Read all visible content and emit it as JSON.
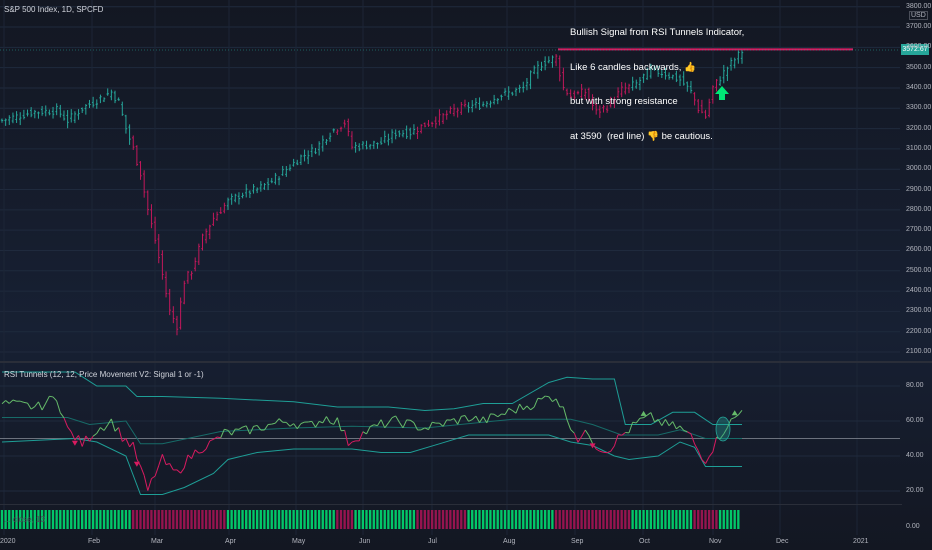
{
  "chart_title": "S&P 500 Index, 1D, SPCFD",
  "annotation_lines": [
    "Bullish Signal from RSI Tunnels Indicator,",
    "Like 6 candles backwards, 👍",
    "but with strong resistance",
    "at 3590  (red line) 👎 be cautious."
  ],
  "currency": "USD",
  "last_price": "3572.67",
  "indicator_title": "RSI Tunnels (12, 12, Price Movement V2: Signal 1 or -1)",
  "strip_title": "... close, 13",
  "colors": {
    "bull": "#26a69a",
    "bear": "#c2185b",
    "rsi_bull": "#66bb6a",
    "rsi_bear": "#d81b60",
    "tunnel": "#1e9e96",
    "resistance": "#d81b60",
    "strip_bull": "#00e676",
    "strip_bear": "#ad1457",
    "signal_arrow": "#00e676"
  },
  "chart_data": [
    {
      "type": "candlestick",
      "y_ticks": [
        "3800.00",
        "3700.00",
        "3600.00",
        "3500.00",
        "3400.00",
        "3300.00",
        "3200.00",
        "3100.00",
        "3000.00",
        "2900.00",
        "2800.00",
        "2700.00",
        "2600.00",
        "2500.00",
        "2400.00",
        "2300.00",
        "2200.00",
        "2100.00"
      ],
      "x_ticks": [
        "2020",
        "Feb",
        "Mar",
        "Apr",
        "May",
        "Jun",
        "Jul",
        "Aug",
        "Sep",
        "Oct",
        "Nov",
        "Dec",
        "2021"
      ],
      "ylim": [
        2080,
        3800
      ],
      "resistance": 3590,
      "close_path": [
        [
          0,
          3240
        ],
        [
          8,
          3280
        ],
        [
          15,
          3290
        ],
        [
          18,
          3240
        ],
        [
          22,
          3300
        ],
        [
          26,
          3340
        ],
        [
          30,
          3380
        ],
        [
          32,
          3330
        ],
        [
          34,
          3200
        ],
        [
          36,
          3100
        ],
        [
          38,
          2980
        ],
        [
          40,
          2800
        ],
        [
          42,
          2650
        ],
        [
          44,
          2480
        ],
        [
          46,
          2300
        ],
        [
          48,
          2230
        ],
        [
          50,
          2450
        ],
        [
          52,
          2500
        ],
        [
          55,
          2660
        ],
        [
          58,
          2760
        ],
        [
          62,
          2840
        ],
        [
          66,
          2880
        ],
        [
          70,
          2900
        ],
        [
          74,
          2940
        ],
        [
          78,
          3000
        ],
        [
          82,
          3060
        ],
        [
          86,
          3100
        ],
        [
          90,
          3180
        ],
        [
          94,
          3230
        ],
        [
          96,
          3110
        ],
        [
          100,
          3120
        ],
        [
          104,
          3130
        ],
        [
          108,
          3180
        ],
        [
          112,
          3180
        ],
        [
          116,
          3220
        ],
        [
          120,
          3250
        ],
        [
          124,
          3290
        ],
        [
          128,
          3310
        ],
        [
          132,
          3320
        ],
        [
          136,
          3360
        ],
        [
          140,
          3380
        ],
        [
          143,
          3400
        ],
        [
          145,
          3460
        ],
        [
          148,
          3520
        ],
        [
          152,
          3550
        ],
        [
          154,
          3400
        ],
        [
          156,
          3360
        ],
        [
          160,
          3380
        ],
        [
          163,
          3280
        ],
        [
          166,
          3310
        ],
        [
          170,
          3390
        ],
        [
          174,
          3420
        ],
        [
          178,
          3490
        ],
        [
          182,
          3470
        ],
        [
          186,
          3440
        ],
        [
          189,
          3380
        ],
        [
          191,
          3300
        ],
        [
          193,
          3260
        ],
        [
          195,
          3400
        ],
        [
          197,
          3450
        ],
        [
          199,
          3500
        ],
        [
          202,
          3560
        ],
        [
          203,
          3580
        ]
      ]
    },
    {
      "type": "line",
      "y_ticks": [
        "80.00",
        "60.00",
        "40.00",
        "20.00"
      ],
      "ylim": [
        14,
        88
      ],
      "midline": 50,
      "signal_up": [
        176,
        201
      ],
      "signal_down": [
        20,
        37,
        162
      ],
      "segments": [
        [
          0,
          70,
          "bull"
        ],
        [
          10,
          68,
          "bull"
        ],
        [
          15,
          74,
          "bull"
        ],
        [
          18,
          55,
          "bear"
        ],
        [
          22,
          47,
          "bear"
        ],
        [
          26,
          55,
          "bull"
        ],
        [
          30,
          60,
          "bull"
        ],
        [
          33,
          51,
          "bear"
        ],
        [
          36,
          45,
          "bear"
        ],
        [
          38,
          33,
          "bear"
        ],
        [
          40,
          20,
          "bear"
        ],
        [
          42,
          30,
          "bear"
        ],
        [
          44,
          38,
          "bear"
        ],
        [
          46,
          33,
          "bear"
        ],
        [
          48,
          30,
          "bear"
        ],
        [
          50,
          36,
          "bear"
        ],
        [
          54,
          44,
          "bear"
        ],
        [
          58,
          48,
          "bear"
        ],
        [
          61,
          53,
          "bull"
        ],
        [
          66,
          54,
          "bull"
        ],
        [
          72,
          57,
          "bull"
        ],
        [
          78,
          60,
          "bull"
        ],
        [
          84,
          57,
          "bull"
        ],
        [
          89,
          62,
          "bull"
        ],
        [
          92,
          60,
          "bull"
        ],
        [
          95,
          48,
          "bear"
        ],
        [
          100,
          54,
          "bull"
        ],
        [
          104,
          58,
          "bull"
        ],
        [
          108,
          60,
          "bull"
        ],
        [
          112,
          58,
          "bull"
        ],
        [
          116,
          56,
          "bull"
        ],
        [
          120,
          58,
          "bull"
        ],
        [
          124,
          60,
          "bull"
        ],
        [
          128,
          62,
          "bull"
        ],
        [
          132,
          60,
          "bull"
        ],
        [
          136,
          63,
          "bull"
        ],
        [
          140,
          66,
          "bull"
        ],
        [
          143,
          68,
          "bull"
        ],
        [
          146,
          70,
          "bull"
        ],
        [
          149,
          73,
          "bull"
        ],
        [
          152,
          74,
          "bull"
        ],
        [
          155,
          62,
          "bull"
        ],
        [
          158,
          50,
          "bear"
        ],
        [
          161,
          53,
          "bull"
        ],
        [
          163,
          46,
          "bear"
        ],
        [
          166,
          43,
          "bear"
        ],
        [
          169,
          50,
          "bear"
        ],
        [
          172,
          55,
          "bull"
        ],
        [
          175,
          60,
          "bull"
        ],
        [
          178,
          62,
          "bull"
        ],
        [
          182,
          58,
          "bull"
        ],
        [
          186,
          56,
          "bull"
        ],
        [
          189,
          51,
          "bear"
        ],
        [
          191,
          43,
          "bear"
        ],
        [
          193,
          38,
          "bear"
        ],
        [
          195,
          45,
          "bear"
        ],
        [
          197,
          52,
          "bull"
        ],
        [
          199,
          58,
          "bull"
        ],
        [
          201,
          61,
          "bull"
        ],
        [
          203,
          66,
          "bull"
        ]
      ],
      "upper_tunnel": [
        [
          0,
          88
        ],
        [
          20,
          88
        ],
        [
          26,
          80
        ],
        [
          34,
          80
        ],
        [
          37,
          74
        ],
        [
          44,
          74
        ],
        [
          60,
          73
        ],
        [
          80,
          71
        ],
        [
          92,
          68
        ],
        [
          96,
          68
        ],
        [
          106,
          68
        ],
        [
          116,
          66
        ],
        [
          124,
          67
        ],
        [
          132,
          70
        ],
        [
          140,
          70
        ],
        [
          150,
          82
        ],
        [
          155,
          85
        ],
        [
          162,
          84
        ],
        [
          168,
          84
        ],
        [
          171,
          58
        ],
        [
          178,
          58
        ],
        [
          184,
          65
        ],
        [
          190,
          65
        ],
        [
          195,
          58
        ],
        [
          203,
          58
        ]
      ],
      "lower_tunnel": [
        [
          0,
          48
        ],
        [
          20,
          50
        ],
        [
          26,
          48
        ],
        [
          34,
          40
        ],
        [
          38,
          18
        ],
        [
          44,
          18
        ],
        [
          50,
          22
        ],
        [
          58,
          30
        ],
        [
          62,
          38
        ],
        [
          70,
          42
        ],
        [
          80,
          44
        ],
        [
          96,
          44
        ],
        [
          104,
          42
        ],
        [
          112,
          42
        ],
        [
          120,
          47
        ],
        [
          128,
          52
        ],
        [
          140,
          52
        ],
        [
          150,
          52
        ],
        [
          156,
          48
        ],
        [
          162,
          46
        ],
        [
          168,
          40
        ],
        [
          172,
          38
        ],
        [
          180,
          40
        ],
        [
          186,
          48
        ],
        [
          190,
          45
        ],
        [
          193,
          34
        ],
        [
          203,
          34
        ]
      ],
      "mid_tunnel": [
        [
          0,
          62
        ],
        [
          18,
          62
        ],
        [
          24,
          58
        ],
        [
          34,
          60
        ],
        [
          38,
          47
        ],
        [
          44,
          47
        ],
        [
          60,
          54
        ],
        [
          80,
          56
        ],
        [
          96,
          57
        ],
        [
          116,
          56
        ],
        [
          140,
          61
        ],
        [
          156,
          61
        ],
        [
          162,
          58
        ],
        [
          170,
          52
        ],
        [
          180,
          52
        ],
        [
          186,
          55
        ],
        [
          193,
          50
        ],
        [
          203,
          50
        ]
      ]
    },
    {
      "type": "heatmap",
      "series": [
        {
          "name": "bull",
          "ranges": [
            [
              0,
              36
            ],
            [
              62,
              92
            ],
            [
              97,
              114
            ],
            [
              128,
              152
            ],
            [
              173,
              190
            ],
            [
              197,
              203
            ]
          ]
        },
        {
          "name": "bear",
          "ranges": [
            [
              36,
              62
            ],
            [
              92,
              97
            ],
            [
              114,
              128
            ],
            [
              152,
              173
            ],
            [
              190,
              197
            ]
          ]
        }
      ]
    }
  ]
}
